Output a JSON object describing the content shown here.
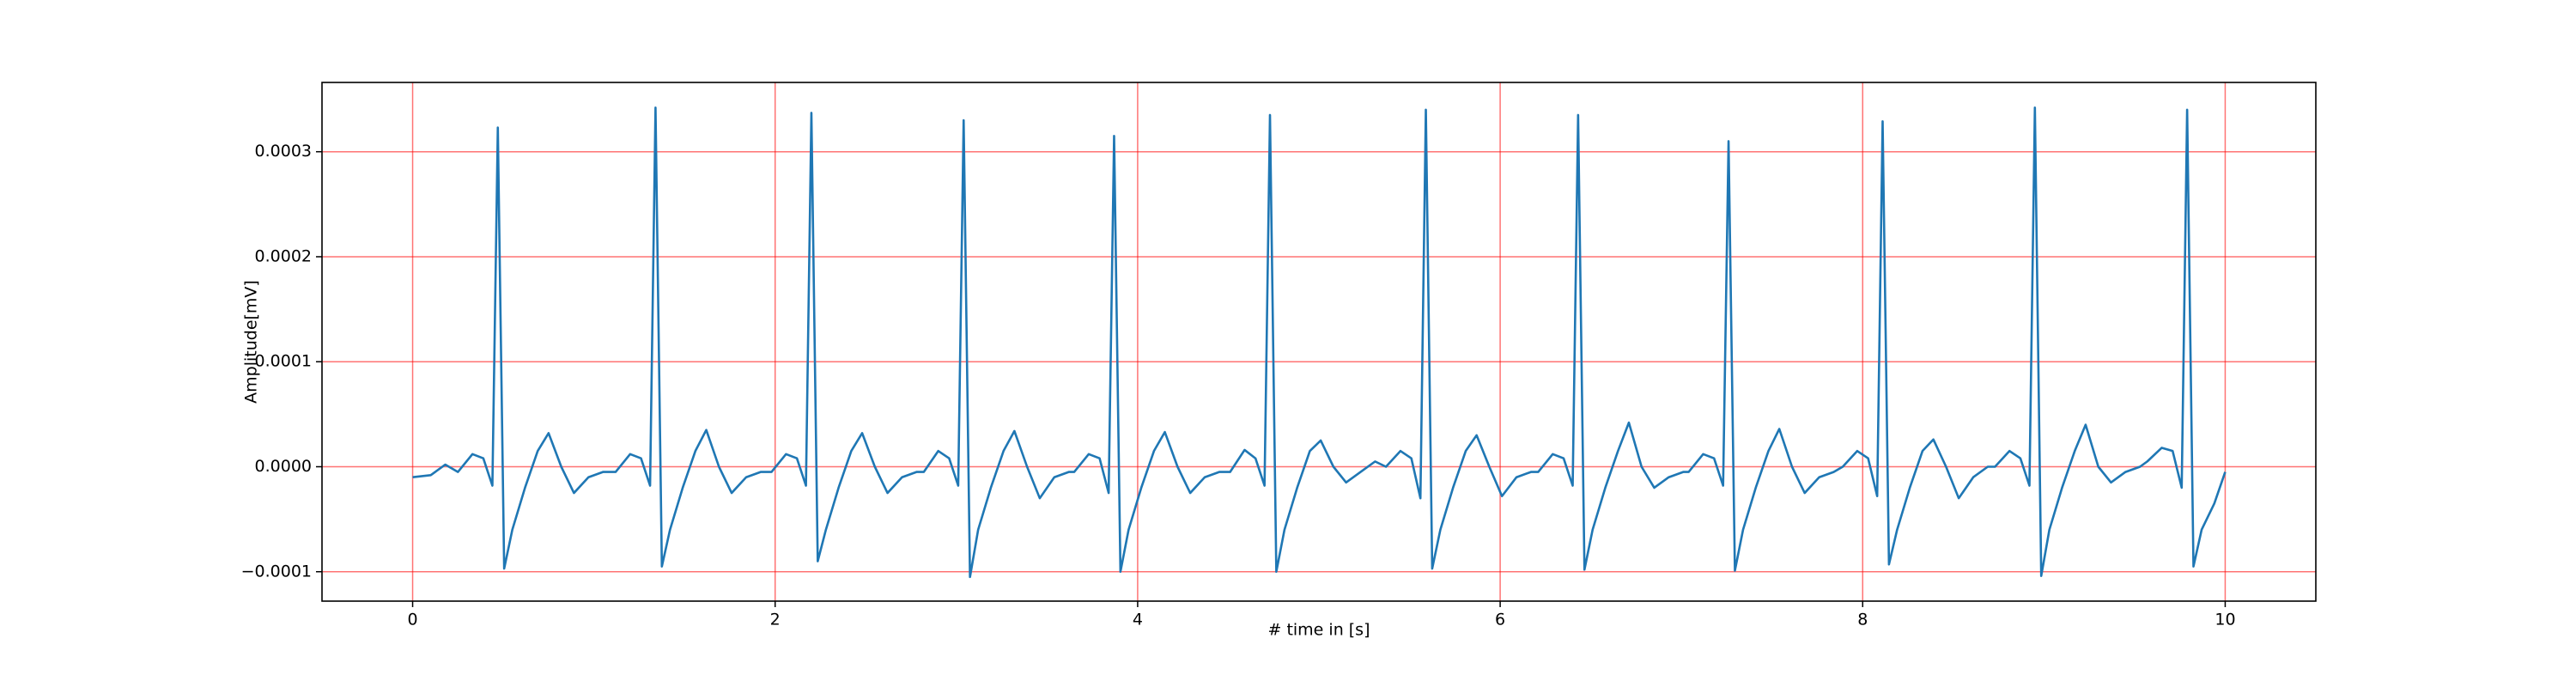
{
  "chart_data": {
    "type": "line",
    "xlabel": "# time in [s]",
    "ylabel": "Amplitude[mV]",
    "color": "#1f77b4",
    "grid": true,
    "xlim": [
      -0.5,
      10.5
    ],
    "ylim": [
      -0.000128,
      0.000366
    ],
    "xticks": [
      0,
      2,
      4,
      6,
      8,
      10
    ],
    "yticks": [
      {
        "value": -0.0001,
        "label": "−0.0001"
      },
      {
        "value": 0,
        "label": "0.0000"
      },
      0.0001,
      0.0002,
      0.0003
    ],
    "x": [
      0,
      0.1,
      0.18,
      0.25,
      0.33,
      0.39,
      0.44,
      0.47,
      0.505,
      0.55,
      0.62,
      0.69,
      0.75,
      0.82,
      0.89,
      0.97,
      1.05,
      1.12,
      1.2,
      1.26,
      1.31,
      1.34,
      1.375,
      1.42,
      1.49,
      1.56,
      1.62,
      1.69,
      1.76,
      1.84,
      1.92,
      1.98,
      2.06,
      2.12,
      2.17,
      2.2,
      2.235,
      2.28,
      2.35,
      2.42,
      2.48,
      2.55,
      2.62,
      2.7,
      2.78,
      2.82,
      2.9,
      2.96,
      3.01,
      3.04,
      3.075,
      3.12,
      3.19,
      3.26,
      3.32,
      3.39,
      3.46,
      3.54,
      3.62,
      3.65,
      3.73,
      3.79,
      3.84,
      3.87,
      3.905,
      3.95,
      4.02,
      4.09,
      4.15,
      4.22,
      4.29,
      4.37,
      4.45,
      4.51,
      4.59,
      4.65,
      4.7,
      4.73,
      4.765,
      4.81,
      4.88,
      4.95,
      5.01,
      5.08,
      5.15,
      5.23,
      5.31,
      5.37,
      5.45,
      5.51,
      5.56,
      5.59,
      5.625,
      5.67,
      5.74,
      5.81,
      5.87,
      5.94,
      6.01,
      6.09,
      6.17,
      6.21,
      6.29,
      6.35,
      6.4,
      6.43,
      6.465,
      6.51,
      6.58,
      6.65,
      6.71,
      6.78,
      6.85,
      6.93,
      7.01,
      7.04,
      7.12,
      7.18,
      7.23,
      7.26,
      7.295,
      7.34,
      7.41,
      7.48,
      7.54,
      7.61,
      7.68,
      7.76,
      7.84,
      7.89,
      7.97,
      8.03,
      8.08,
      8.11,
      8.145,
      8.19,
      8.26,
      8.33,
      8.39,
      8.46,
      8.53,
      8.61,
      8.69,
      8.73,
      8.81,
      8.87,
      8.92,
      8.95,
      8.985,
      9.03,
      9.1,
      9.17,
      9.23,
      9.3,
      9.37,
      9.45,
      9.53,
      9.57,
      9.65,
      9.71,
      9.76,
      9.79,
      9.825,
      9.87,
      9.94,
      10.0
    ],
    "values": [
      -1e-05,
      -8e-06,
      2e-06,
      -5e-06,
      1.2e-05,
      8e-06,
      -1.8e-05,
      0.000323,
      -9.7e-05,
      -6e-05,
      -2e-05,
      1.5e-05,
      3.2e-05,
      0,
      -2.5e-05,
      -1e-05,
      -5e-06,
      -5e-06,
      1.2e-05,
      8e-06,
      -1.8e-05,
      0.000342,
      -9.5e-05,
      -6e-05,
      -2e-05,
      1.5e-05,
      3.5e-05,
      0,
      -2.5e-05,
      -1e-05,
      -5e-06,
      -5e-06,
      1.2e-05,
      8e-06,
      -1.8e-05,
      0.000337,
      -9e-05,
      -6e-05,
      -2e-05,
      1.5e-05,
      3.2e-05,
      0,
      -2.5e-05,
      -1e-05,
      -5e-06,
      -5e-06,
      1.5e-05,
      8e-06,
      -1.8e-05,
      0.00033,
      -0.000105,
      -6e-05,
      -2e-05,
      1.5e-05,
      3.4e-05,
      0,
      -3e-05,
      -1e-05,
      -5e-06,
      -5e-06,
      1.2e-05,
      8e-06,
      -2.5e-05,
      0.000315,
      -0.0001,
      -6e-05,
      -2e-05,
      1.5e-05,
      3.3e-05,
      0,
      -2.5e-05,
      -1e-05,
      -5e-06,
      -5e-06,
      1.6e-05,
      8e-06,
      -1.8e-05,
      0.000335,
      -0.0001,
      -6e-05,
      -2e-05,
      1.5e-05,
      2.5e-05,
      0,
      -1.5e-05,
      -5e-06,
      5e-06,
      0,
      1.5e-05,
      8e-06,
      -3e-05,
      0.00034,
      -9.7e-05,
      -6e-05,
      -2e-05,
      1.5e-05,
      3e-05,
      0,
      -2.8e-05,
      -1e-05,
      -5e-06,
      -5e-06,
      1.2e-05,
      8e-06,
      -1.8e-05,
      0.000335,
      -9.8e-05,
      -6e-05,
      -2e-05,
      1.5e-05,
      4.2e-05,
      0,
      -2e-05,
      -1e-05,
      -5e-06,
      -5e-06,
      1.2e-05,
      8e-06,
      -1.8e-05,
      0.00031,
      -9.9e-05,
      -6e-05,
      -2e-05,
      1.5e-05,
      3.6e-05,
      0,
      -2.5e-05,
      -1e-05,
      -5e-06,
      0,
      1.5e-05,
      8e-06,
      -2.8e-05,
      0.000329,
      -9.3e-05,
      -6e-05,
      -2e-05,
      1.5e-05,
      2.6e-05,
      0,
      -3e-05,
      -1e-05,
      0,
      0,
      1.5e-05,
      8e-06,
      -1.8e-05,
      0.000342,
      -0.000104,
      -6e-05,
      -2e-05,
      1.5e-05,
      4e-05,
      0,
      -1.5e-05,
      -5e-06,
      0,
      5e-06,
      1.8e-05,
      1.5e-05,
      -2e-05,
      0.00034,
      -9.5e-05,
      -6e-05,
      -3.5e-05,
      -5e-06
    ]
  }
}
